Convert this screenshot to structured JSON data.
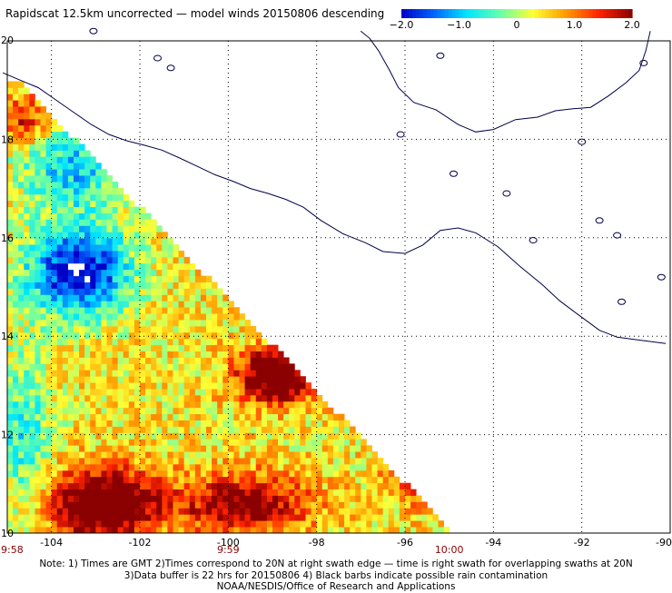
{
  "title": "Rapidscat 12.5km uncorrected — model winds 20150806 descending",
  "colorbar": {
    "min": -2.0,
    "max": 2.0,
    "tick_labels": [
      "−2.0",
      "−1.0",
      "0",
      "1.0",
      "2.0"
    ],
    "tick_values": [
      -2.0,
      -1.0,
      0,
      1.0,
      2.0
    ],
    "colors": [
      "#0000c8",
      "#0066ff",
      "#00e6ff",
      "#66ffaa",
      "#ffff33",
      "#ff9900",
      "#ff2200",
      "#8b0000"
    ]
  },
  "map": {
    "lon_range": [
      -105,
      -90
    ],
    "lat_range": [
      10,
      20
    ],
    "lon_ticks": [
      -104,
      -102,
      -100,
      -98,
      -96,
      -94,
      -92,
      -90
    ],
    "lon_tick_labels": [
      "-104",
      "-102",
      "-100",
      "-98",
      "-96",
      "-94",
      "-92",
      "-90"
    ],
    "lat_ticks": [
      10,
      12,
      14,
      16,
      18,
      20
    ],
    "lat_tick_labels": [
      "10",
      "12",
      "14",
      "16",
      "18",
      "20"
    ],
    "grid": true,
    "time_labels": [
      {
        "label": "9:58",
        "lon": -105.0
      },
      {
        "label": "9:59",
        "lon": -100.0
      },
      {
        "label": "10:00",
        "lon": -95.0
      }
    ],
    "coastline_color": "#00004a"
  },
  "notes": [
    "Note: 1) Times are GMT 2)Times correspond to 20N at right swath edge — time is right swath for overlapping swaths at 20N",
    "3)Data buffer is 22 hrs for 20150806 4) Black barbs indicate possible rain contamination",
    "NOAA/NESDIS/Office of Research and Applications"
  ]
}
